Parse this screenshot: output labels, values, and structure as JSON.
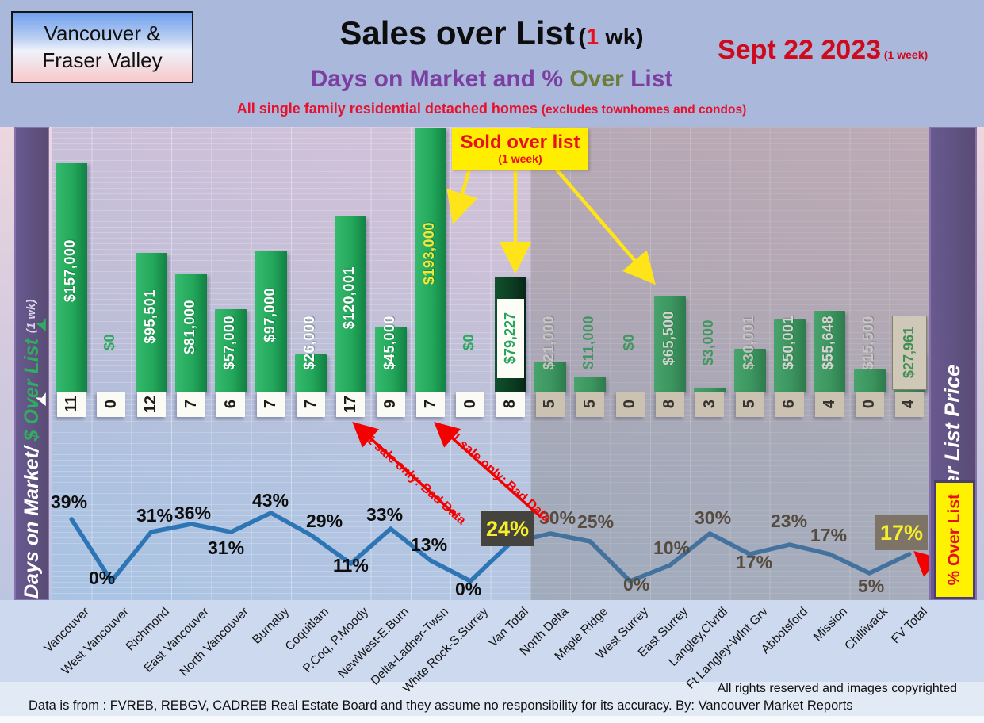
{
  "header": {
    "region_line1": "Vancouver &",
    "region_line2": "Fraser Valley",
    "title_main": "Sales over List",
    "title_paren_open": "(",
    "title_num": "1",
    "title_paren_rest": " wk)",
    "subtitle_part1": "Days on Market and % ",
    "subtitle_over": "Over",
    "subtitle_part2": " List",
    "tagline_main": "All single family residential detached homes ",
    "tagline_paren": "(excludes townhomes and condos)",
    "date": "Sept 22  2023",
    "date_suffix": " (1 week)"
  },
  "left_axis": {
    "label_white": "Days on Market/ ",
    "label_green": "$ Over List ",
    "label_small": "(1 wk)"
  },
  "right_axis": {
    "label": "Sales over List Price",
    "pct_box_label": "% Over List"
  },
  "callout": {
    "line1": "Sold over list",
    "line2": "(1 week)"
  },
  "bad_data_note": "1 sale only: Bad Data",
  "footer": {
    "rights": "All rights reserved and  images copyrighted",
    "source": "Data is from : FVREB, REBGV, CADREB Real Estate Board and they assume no responsibility for its accuracy. By: Vancouver Market Reports"
  },
  "colors": {
    "bar_green": "#23a75b",
    "bar_dark_green": "#0b3a20",
    "line_blue": "#2e75b6",
    "sidebar_purple": "#594b74",
    "callout_yellow": "#ffee00",
    "annotation_red": "#f40000",
    "pct_box_dark": "#45433d",
    "pct_box_brown": "#7d7366",
    "pct_box_text_yellow": "#f5ef2b"
  },
  "chart_data": {
    "type": "combo-bar-line",
    "title": "Sales over List (1 wk) — Days on Market and % Over List",
    "bar_series_name": "$ Over List",
    "days_series_name": "Days on Market",
    "line_series_name": "% Over List",
    "grid": true,
    "legend_position": "none",
    "bar_axis_range_dollars": [
      0,
      200000
    ],
    "line_axis_range_pct": [
      0,
      45
    ],
    "regions": {
      "van_columns": [
        0,
        11
      ],
      "fv_columns": [
        12,
        21
      ]
    },
    "columns": [
      {
        "name": "Vancouver",
        "days": 11,
        "over": 157000,
        "over_label": "$157,000",
        "pct": 39,
        "label_style": "white"
      },
      {
        "name": "West Vancouver",
        "days": 0,
        "over": 0,
        "over_label": "$0",
        "pct": 0,
        "label_style": "green"
      },
      {
        "name": "Richmond",
        "days": 12,
        "over": 95501,
        "over_label": "$95,501",
        "pct": 31,
        "label_style": "white"
      },
      {
        "name": "East Vancouver",
        "days": 7,
        "over": 81000,
        "over_label": "$81,000",
        "pct": 36,
        "label_style": "white"
      },
      {
        "name": "North Vancouver",
        "days": 6,
        "over": 57000,
        "over_label": "$57,000",
        "pct": 31,
        "label_style": "white"
      },
      {
        "name": "Burnaby",
        "days": 7,
        "over": 97000,
        "over_label": "$97,000",
        "pct": 43,
        "label_style": "white"
      },
      {
        "name": "Coquitlam",
        "days": 7,
        "over": 26000,
        "over_label": "$26,000",
        "pct": 29,
        "label_style": "white"
      },
      {
        "name": "P.Coq, P.Moody",
        "days": 17,
        "over": 120001,
        "over_label": "$120,001",
        "pct": 11,
        "label_style": "white"
      },
      {
        "name": "NewWest-E.Burn",
        "days": 9,
        "over": 45000,
        "over_label": "$45,000",
        "pct": 33,
        "label_style": "white"
      },
      {
        "name": "Delta-Ladner-Twsn",
        "days": 7,
        "over": 193000,
        "over_label": "$193,000",
        "pct": 13,
        "label_style": "yellow"
      },
      {
        "name": "White Rock-S.Surrey",
        "days": 0,
        "over": 0,
        "over_label": "$0",
        "pct": 0,
        "label_style": "green"
      },
      {
        "name": "Van Total",
        "days": 8,
        "over": 79227,
        "over_label": "$79,227",
        "pct": 24,
        "label_style": "van-total",
        "pct_style": "box-dark"
      },
      {
        "name": "North Delta",
        "days": 5,
        "over": 21000,
        "over_label": "$21,000",
        "pct": 30,
        "label_style": "faded"
      },
      {
        "name": "Maple Ridge",
        "days": 5,
        "over": 11000,
        "over_label": "$11,000",
        "pct": 25,
        "label_style": "green"
      },
      {
        "name": "West Surrey",
        "days": 0,
        "over": 0,
        "over_label": "$0",
        "pct": 0,
        "label_style": "green"
      },
      {
        "name": "East Surrey",
        "days": 8,
        "over": 65500,
        "over_label": "$65,500",
        "pct": 10,
        "label_style": "white"
      },
      {
        "name": "Langley,Clvrdl",
        "days": 3,
        "over": 3000,
        "over_label": "$3,000",
        "pct": 30,
        "label_style": "green"
      },
      {
        "name": "Ft Langley-Wlnt Grv",
        "days": 5,
        "over": 30001,
        "over_label": "$30,001",
        "pct": 17,
        "label_style": "faded"
      },
      {
        "name": "Abbotsford",
        "days": 6,
        "over": 50001,
        "over_label": "$50,001",
        "pct": 23,
        "label_style": "white"
      },
      {
        "name": "Mission",
        "days": 4,
        "over": 55648,
        "over_label": "$55,648",
        "pct": 17,
        "label_style": "white"
      },
      {
        "name": "Chilliwack",
        "days": 0,
        "over": 15500,
        "over_label": "$15,500",
        "pct": 5,
        "label_style": "faded"
      },
      {
        "name": "FV Total",
        "days": 4,
        "over": 27961,
        "over_label": "$27,961",
        "pct": 17,
        "label_style": "fv-total",
        "pct_style": "box-brown"
      }
    ]
  }
}
